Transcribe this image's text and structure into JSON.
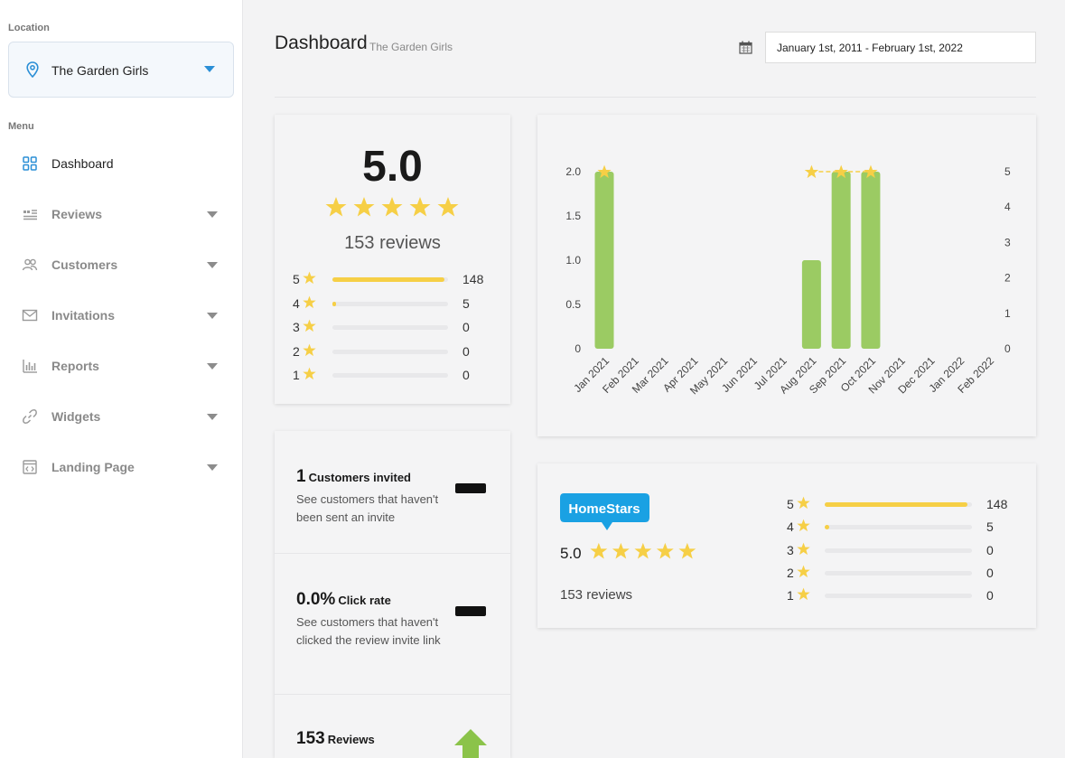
{
  "sidebar": {
    "location_label": "Location",
    "location_name": "The Garden Girls",
    "menu_label": "Menu",
    "items": [
      {
        "label": "Dashboard",
        "icon": "grid-icon"
      },
      {
        "label": "Reviews",
        "icon": "reviews-icon"
      },
      {
        "label": "Customers",
        "icon": "customers-icon"
      },
      {
        "label": "Invitations",
        "icon": "envelope-icon"
      },
      {
        "label": "Reports",
        "icon": "bar-chart-icon"
      },
      {
        "label": "Widgets",
        "icon": "link-icon"
      },
      {
        "label": "Landing Page",
        "icon": "code-page-icon"
      }
    ]
  },
  "header": {
    "title": "Dashboard",
    "subtitle": "The Garden Girls",
    "date_range": "January 1st, 2011 - February 1st, 2022"
  },
  "summary": {
    "rating": "5.0",
    "reviews": "153 reviews",
    "distribution": [
      {
        "stars": "5",
        "count": "148",
        "fraction": 0.967
      },
      {
        "stars": "4",
        "count": "5",
        "fraction": 0.033
      },
      {
        "stars": "3",
        "count": "0",
        "fraction": 0
      },
      {
        "stars": "2",
        "count": "0",
        "fraction": 0
      },
      {
        "stars": "1",
        "count": "0",
        "fraction": 0
      }
    ]
  },
  "stats": [
    {
      "value": "1",
      "unit": "Customers invited",
      "desc": "See customers that haven't been sent an invite"
    },
    {
      "value": "0.0%",
      "unit": "Click rate",
      "desc": "See customers that haven't clicked the review invite link"
    },
    {
      "value": "153",
      "unit": "Reviews",
      "desc": ""
    }
  ],
  "homestars": {
    "logo_text": "HomeStars",
    "rating": "5.0",
    "reviews": "153 reviews",
    "distribution": [
      {
        "stars": "5",
        "count": "148",
        "fraction": 0.967
      },
      {
        "stars": "4",
        "count": "5",
        "fraction": 0.033
      },
      {
        "stars": "3",
        "count": "0",
        "fraction": 0
      },
      {
        "stars": "2",
        "count": "0",
        "fraction": 0
      },
      {
        "stars": "1",
        "count": "0",
        "fraction": 0
      }
    ]
  },
  "colors": {
    "accent": "#2b8fd6",
    "star": "#f6cf46",
    "bar": "#9bcb63",
    "homestars": "#1aa1e3"
  },
  "chart_data": {
    "type": "bar",
    "categories": [
      "Jan 2021",
      "Feb 2021",
      "Mar 2021",
      "Apr 2021",
      "May 2021",
      "Jun 2021",
      "Jul 2021",
      "Aug 2021",
      "Sep 2021",
      "Oct 2021",
      "Nov 2021",
      "Dec 2021",
      "Jan 2022",
      "Feb 2022"
    ],
    "series": [
      {
        "values": [
          2,
          0,
          0,
          0,
          0,
          0,
          0,
          1,
          2,
          2,
          0,
          0,
          0,
          0
        ]
      },
      {
        "values": [
          5,
          null,
          null,
          null,
          null,
          null,
          null,
          5,
          5,
          5,
          null,
          null,
          null,
          null
        ]
      }
    ],
    "ylim": [
      0,
      2
    ],
    "y2lim": [
      0,
      5
    ],
    "y_ticks": [
      "0",
      "0.5",
      "1.0",
      "1.5",
      "2.0"
    ],
    "y2_ticks": [
      "0",
      "1",
      "2",
      "3",
      "4",
      "5"
    ]
  }
}
